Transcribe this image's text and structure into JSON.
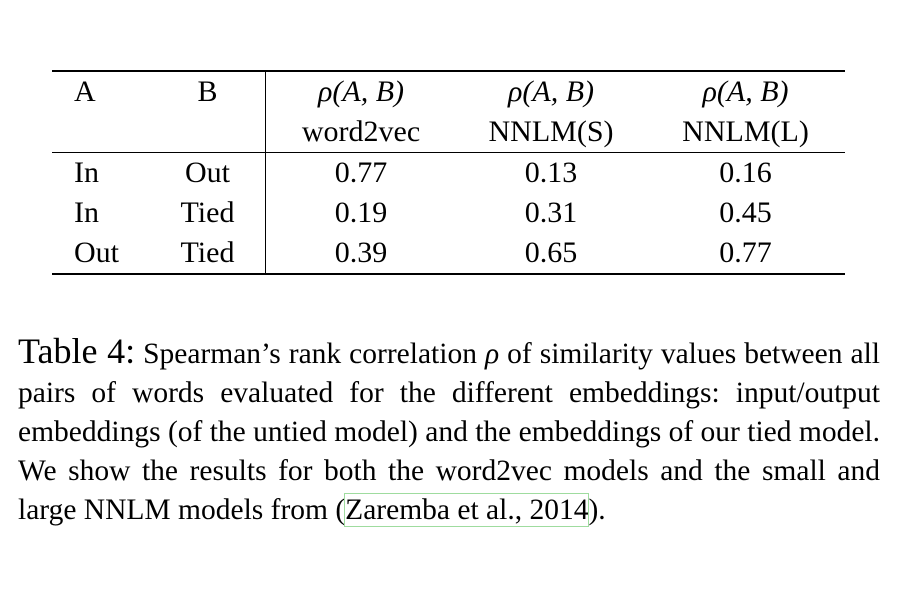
{
  "table": {
    "columns": [
      {
        "name": "A"
      },
      {
        "name": "B"
      },
      {
        "name": "ρ(A, B)",
        "sub": "word2vec"
      },
      {
        "name": "ρ(A, B)",
        "sub": "NNLM(S)"
      },
      {
        "name": "ρ(A, B)",
        "sub": "NNLM(L)"
      }
    ],
    "rows": [
      [
        "In",
        "Out",
        "0.77",
        "0.13",
        "0.16"
      ],
      [
        "In",
        "Tied",
        "0.19",
        "0.31",
        "0.45"
      ],
      [
        "Out",
        "Tied",
        "0.39",
        "0.65",
        "0.77"
      ]
    ]
  },
  "caption": {
    "label": "Table 4:",
    "text_1": "Spearman’s rank correlation ",
    "symbol": "ρ",
    "text_2": " of similarity values between all pairs of words evaluated for the different embeddings: input/output embeddings (of the untied model) and the embeddings of our tied model. We show the results for both the word2vec models and the small and large NNLM models from (",
    "citation": "Zaremba et al., 2014",
    "text_3": ")."
  }
}
